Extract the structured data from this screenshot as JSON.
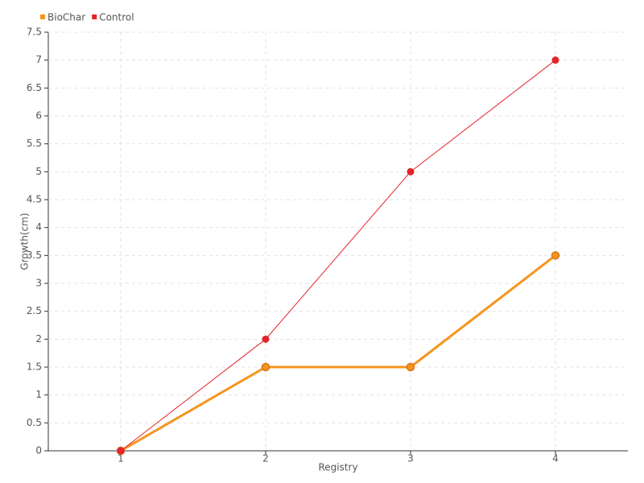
{
  "chart_data": {
    "type": "line",
    "x_label": "Registry",
    "y_label": "Growth(cm)",
    "x": [
      1,
      2,
      3,
      4
    ],
    "series": [
      {
        "name": "BioChar",
        "color": "#f7941d",
        "values": [
          0,
          1.5,
          1.5,
          3.5
        ]
      },
      {
        "name": "Control",
        "color": "#e3242b",
        "values": [
          0,
          2,
          5,
          7
        ]
      }
    ],
    "xlim": [
      0.5,
      4.5
    ],
    "xticks": [
      1,
      2,
      3,
      4
    ],
    "ylim": [
      0,
      7.5
    ],
    "yticks": [
      0,
      0.5,
      1,
      1.5,
      2,
      2.5,
      3,
      3.5,
      4,
      4.5,
      5,
      5.5,
      6,
      6.5,
      7,
      7.5
    ],
    "grid": true,
    "legend": "top-left"
  }
}
